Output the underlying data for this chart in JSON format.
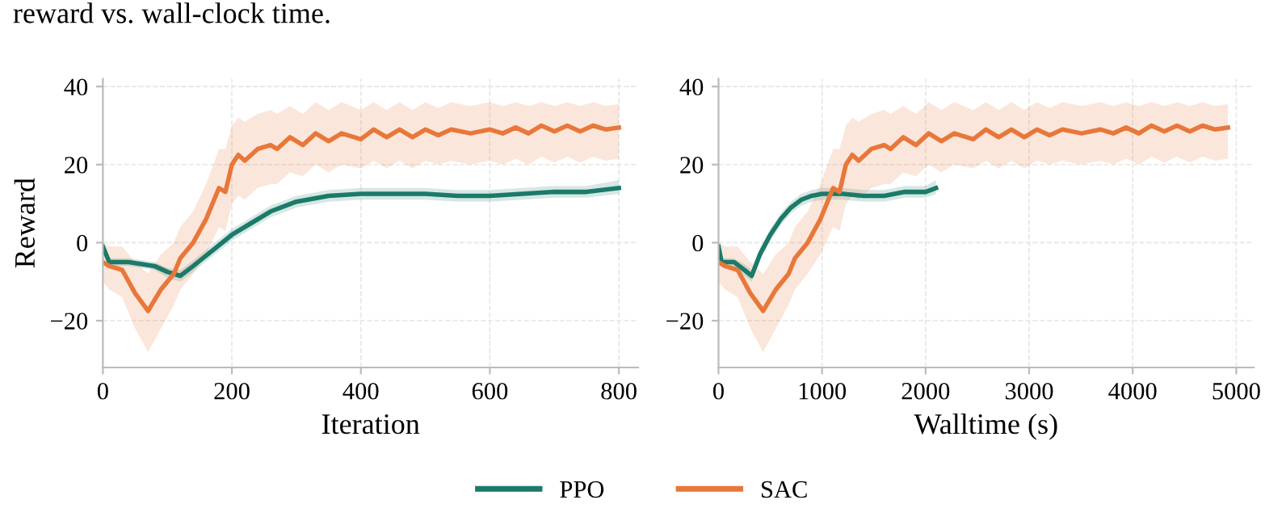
{
  "chart_data": [
    {
      "type": "line",
      "xlabel": "Iteration",
      "ylabel": "Reward",
      "annotations": [
        "reward vs. wall-clock time."
      ],
      "xlim": [
        0,
        830
      ],
      "ylim": [
        -32,
        42
      ],
      "xticks": [
        0,
        200,
        400,
        600,
        800
      ],
      "yticks": [
        {
          "value": -20,
          "label": "−20"
        },
        0,
        20,
        40
      ],
      "grid": true,
      "legend": "bottom",
      "series": [
        {
          "name": "PPO",
          "color": "#1b7a69",
          "x": [
            0,
            10,
            40,
            80,
            100,
            120,
            140,
            170,
            200,
            230,
            260,
            300,
            350,
            400,
            450,
            500,
            550,
            600,
            650,
            700,
            750,
            800
          ],
          "values": [
            -1,
            -5,
            -5,
            -6,
            -7.5,
            -8.5,
            -6,
            -2,
            2,
            5,
            8,
            10.5,
            12,
            12.5,
            12.5,
            12.5,
            12,
            12,
            12.5,
            13,
            13,
            14
          ],
          "lower": [
            -3,
            -6,
            -6,
            -7,
            -9,
            -10,
            -7.5,
            -3.5,
            0.5,
            3.5,
            6.5,
            9,
            10.5,
            11,
            11,
            11,
            10.5,
            10.5,
            11,
            11.5,
            11.5,
            12.5
          ],
          "upper": [
            0,
            -4,
            -4,
            -5,
            -6.5,
            -7,
            -4.5,
            -0.5,
            3.5,
            6.5,
            9.5,
            12,
            13.5,
            14,
            14,
            14,
            13.5,
            13.5,
            14,
            14.5,
            14.5,
            16
          ]
        },
        {
          "name": "SAC",
          "color": "#e8773a",
          "x": [
            0,
            10,
            30,
            50,
            70,
            90,
            110,
            120,
            140,
            160,
            180,
            190,
            200,
            210,
            220,
            240,
            260,
            270,
            290,
            310,
            330,
            350,
            370,
            400,
            420,
            440,
            460,
            480,
            500,
            520,
            540,
            570,
            600,
            620,
            640,
            660,
            680,
            700,
            720,
            740,
            760,
            780,
            800
          ],
          "values": [
            -5,
            -6,
            -7,
            -13,
            -17.5,
            -12,
            -8,
            -4,
            0,
            6,
            14,
            13,
            20,
            22.5,
            21,
            24,
            25,
            24,
            27,
            25,
            28,
            26,
            28,
            26.5,
            29,
            27,
            29,
            27,
            29,
            27.5,
            29,
            28,
            29,
            28,
            29.5,
            28,
            30,
            28.5,
            30,
            28.5,
            30,
            29,
            29.5
          ],
          "lower": [
            -10,
            -12,
            -14,
            -22,
            -28,
            -22,
            -16,
            -12,
            -8,
            -3,
            4,
            3,
            10,
            12,
            11,
            14,
            15,
            15,
            18,
            17,
            20,
            18,
            20,
            19,
            21,
            19,
            21,
            19,
            21,
            20,
            21,
            20,
            21,
            20,
            21.5,
            20,
            22,
            20.5,
            22,
            20.5,
            22,
            21,
            21.5
          ],
          "upper": [
            0,
            -1,
            -1,
            -5,
            -8,
            -3,
            0,
            4,
            8,
            15,
            24,
            24,
            30,
            32,
            31,
            33,
            34,
            33,
            35,
            33,
            36,
            34,
            36,
            34,
            36,
            34,
            36,
            34,
            36,
            34.5,
            36,
            35,
            36,
            35,
            36,
            35,
            36,
            35,
            36,
            35,
            36,
            35,
            35.5
          ]
        }
      ]
    },
    {
      "type": "line",
      "xlabel": "Walltime (s)",
      "xlim": [
        0,
        5170
      ],
      "ylim": [
        -32,
        42
      ],
      "xticks": [
        0,
        1000,
        2000,
        3000,
        4000,
        5000
      ],
      "yticks": [
        {
          "value": -20,
          "label": "−20"
        },
        0,
        20,
        40
      ],
      "grid": true,
      "legend": "bottom",
      "series": [
        {
          "name": "PPO",
          "color": "#1b7a69",
          "x": [
            0,
            30,
            150,
            250,
            320,
            400,
            500,
            600,
            700,
            800,
            900,
            1000,
            1200,
            1400,
            1600,
            1800,
            2000,
            2100
          ],
          "values": [
            -1,
            -5,
            -5,
            -7,
            -8.5,
            -3,
            2,
            6,
            9,
            11,
            12,
            12.5,
            12.5,
            12,
            12,
            13,
            13,
            14
          ],
          "lower": [
            -3,
            -6,
            -6,
            -8.5,
            -10,
            -4.5,
            0.5,
            4.5,
            7.5,
            9.5,
            10.5,
            11,
            11,
            10.5,
            10.5,
            11.5,
            11.5,
            12.5
          ],
          "upper": [
            0,
            -4,
            -4,
            -5.5,
            -7,
            -1.5,
            3.5,
            7.5,
            10.5,
            12.5,
            13.5,
            14,
            14,
            13.5,
            13.5,
            14.5,
            14.5,
            16
          ]
        },
        {
          "name": "SAC",
          "color": "#e8773a",
          "x": [
            0,
            62,
            185,
            308,
            430,
            554,
            677,
            738,
            861,
            984,
            1107,
            1169,
            1230,
            1292,
            1353,
            1476,
            1599,
            1661,
            1784,
            1907,
            2030,
            2153,
            2276,
            2460,
            2583,
            2706,
            2829,
            2952,
            3075,
            3198,
            3321,
            3506,
            3690,
            3813,
            3936,
            4059,
            4182,
            4305,
            4428,
            4551,
            4674,
            4797,
            4920
          ],
          "values": [
            -5,
            -6,
            -7,
            -13,
            -17.5,
            -12,
            -8,
            -4,
            0,
            6,
            14,
            13,
            20,
            22.5,
            21,
            24,
            25,
            24,
            27,
            25,
            28,
            26,
            28,
            26.5,
            29,
            27,
            29,
            27,
            29,
            27.5,
            29,
            28,
            29,
            28,
            29.5,
            28,
            30,
            28.5,
            30,
            28.5,
            30,
            29,
            29.5
          ],
          "lower": [
            -10,
            -12,
            -14,
            -22,
            -28,
            -22,
            -16,
            -12,
            -8,
            -3,
            4,
            3,
            10,
            12,
            11,
            14,
            15,
            15,
            18,
            17,
            20,
            18,
            20,
            19,
            21,
            19,
            21,
            19,
            21,
            20,
            21,
            20,
            21,
            20,
            21.5,
            20,
            22,
            20.5,
            22,
            20.5,
            22,
            21,
            21.5
          ],
          "upper": [
            0,
            -1,
            -1,
            -5,
            -8,
            -3,
            0,
            4,
            8,
            15,
            24,
            24,
            30,
            32,
            31,
            33,
            34,
            33,
            35,
            33,
            36,
            34,
            36,
            34,
            36,
            34,
            36,
            34,
            36,
            34.5,
            36,
            35,
            36,
            35,
            36,
            35,
            36,
            35,
            36,
            35,
            36,
            35,
            35.5
          ]
        }
      ]
    }
  ]
}
